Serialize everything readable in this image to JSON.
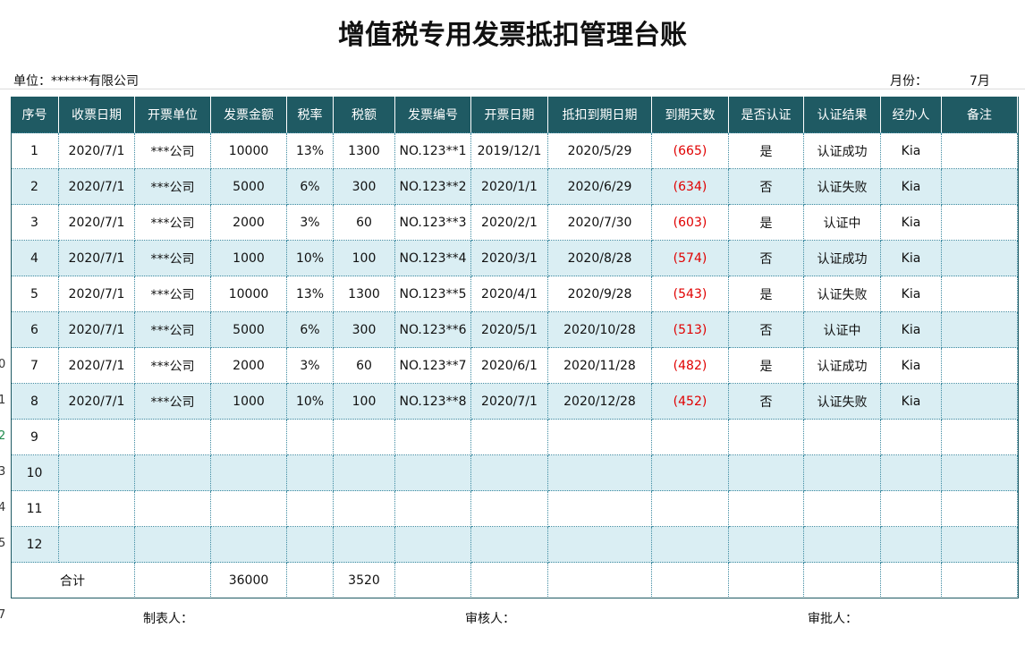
{
  "header": {
    "title": "增值税专用发票抵扣管理台账"
  },
  "info": {
    "unit": "单位：******有限公司",
    "month_label": "月份：",
    "month": "7月"
  },
  "sheet_rows": [
    "0",
    "1",
    "2",
    "3",
    "4",
    "5",
    "7"
  ],
  "table": {
    "columns": [
      "序号",
      "收票日期",
      "开票单位",
      "发票金额",
      "税率",
      "税额",
      "发票编号",
      "开票日期",
      "抵扣到期日期",
      "到期天数",
      "是否认证",
      "认证结果",
      "经办人",
      "备注"
    ],
    "rows": [
      [
        "1",
        "2020/7/1",
        "***公司",
        "10000",
        "13%",
        "1300",
        "NO.123**1",
        "2019/12/1",
        "2020/5/29",
        "(665)",
        "是",
        "认证成功",
        "Kia",
        null
      ],
      [
        "2",
        "2020/7/1",
        "***公司",
        "5000",
        "6%",
        "300",
        "NO.123**2",
        "2020/1/1",
        "2020/6/29",
        "(634)",
        "否",
        "认证失败",
        "Kia",
        null
      ],
      [
        "3",
        "2020/7/1",
        "***公司",
        "2000",
        "3%",
        "60",
        "NO.123**3",
        "2020/2/1",
        "2020/7/30",
        "(603)",
        "是",
        "认证中",
        "Kia",
        null
      ],
      [
        "4",
        "2020/7/1",
        "***公司",
        "1000",
        "10%",
        "100",
        "NO.123**4",
        "2020/3/1",
        "2020/8/28",
        "(574)",
        "否",
        "认证成功",
        "Kia",
        null
      ],
      [
        "5",
        "2020/7/1",
        "***公司",
        "10000",
        "13%",
        "1300",
        "NO.123**5",
        "2020/4/1",
        "2020/9/28",
        "(543)",
        "是",
        "认证失败",
        "Kia",
        null
      ],
      [
        "6",
        "2020/7/1",
        "***公司",
        "5000",
        "6%",
        "300",
        "NO.123**6",
        "2020/5/1",
        "2020/10/28",
        "(513)",
        "否",
        "认证中",
        "Kia",
        null
      ],
      [
        "7",
        "2020/7/1",
        "***公司",
        "2000",
        "3%",
        "60",
        "NO.123**7",
        "2020/6/1",
        "2020/11/28",
        "(482)",
        "是",
        "认证成功",
        "Kia",
        null
      ],
      [
        "8",
        "2020/7/1",
        "***公司",
        "1000",
        "10%",
        "100",
        "NO.123**8",
        "2020/7/1",
        "2020/12/28",
        "(452)",
        "否",
        "认证失败",
        "Kia",
        null
      ],
      [
        "9",
        null,
        null,
        null,
        null,
        null,
        null,
        null,
        null,
        null,
        null,
        null,
        null,
        null
      ],
      [
        "10",
        null,
        null,
        null,
        null,
        null,
        null,
        null,
        null,
        null,
        null,
        null,
        null,
        null
      ],
      [
        "11",
        null,
        null,
        null,
        null,
        null,
        null,
        null,
        null,
        null,
        null,
        null,
        null,
        null
      ],
      [
        "12",
        null,
        null,
        null,
        null,
        null,
        null,
        null,
        null,
        null,
        null,
        null,
        null,
        null
      ]
    ],
    "total": {
      "label": "合计",
      "amount": "36000",
      "tax": "3520"
    }
  },
  "footer": {
    "maker": "制表人：",
    "reviewer": "审核人：",
    "approver": "审批人："
  }
}
